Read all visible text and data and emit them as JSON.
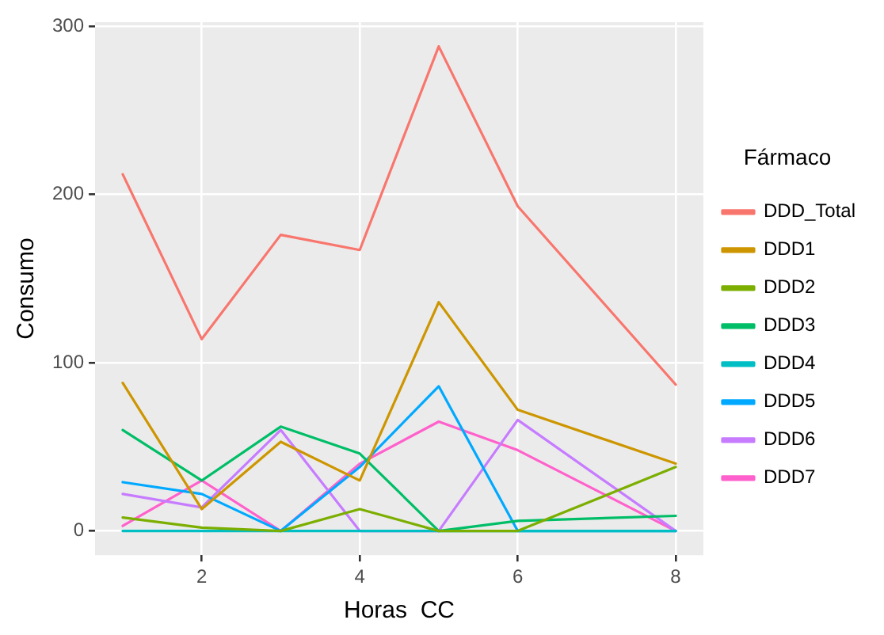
{
  "chart_data": {
    "type": "line",
    "xlabel": "Horas  CC",
    "ylabel": "Consumo",
    "legend_title": "Fármaco",
    "legend": "right",
    "grid": true,
    "marker": "none",
    "line_style": "solid",
    "x": [
      1,
      2,
      3,
      4,
      5,
      6,
      8
    ],
    "xlim": [
      0.65,
      8.35
    ],
    "xticks": [
      2,
      4,
      6,
      8
    ],
    "ylim": [
      -14.4,
      302.4
    ],
    "yticks": [
      0,
      100,
      200,
      300
    ],
    "series": [
      {
        "name": "DDD_Total",
        "color": "#f8766d",
        "values": [
          212,
          114,
          176,
          167,
          288,
          193,
          87
        ]
      },
      {
        "name": "DDD1",
        "color": "#cd9600",
        "values": [
          88,
          13,
          53,
          30,
          136,
          72,
          40
        ]
      },
      {
        "name": "DDD2",
        "color": "#7cae00",
        "values": [
          8,
          2,
          0,
          13,
          0,
          0,
          38
        ]
      },
      {
        "name": "DDD3",
        "color": "#00be67",
        "values": [
          60,
          30,
          62,
          46,
          0,
          6,
          9
        ]
      },
      {
        "name": "DDD4",
        "color": "#00bfc4",
        "values": [
          0,
          0,
          0,
          0,
          0,
          0,
          0
        ]
      },
      {
        "name": "DDD5",
        "color": "#00a9ff",
        "values": [
          29,
          22,
          0,
          38,
          86,
          0,
          0
        ]
      },
      {
        "name": "DDD6",
        "color": "#c77cff",
        "values": [
          22,
          14,
          60,
          0,
          0,
          66,
          0
        ]
      },
      {
        "name": "DDD7",
        "color": "#ff61cc",
        "values": [
          3,
          30,
          0,
          40,
          65,
          48,
          0
        ]
      }
    ]
  }
}
